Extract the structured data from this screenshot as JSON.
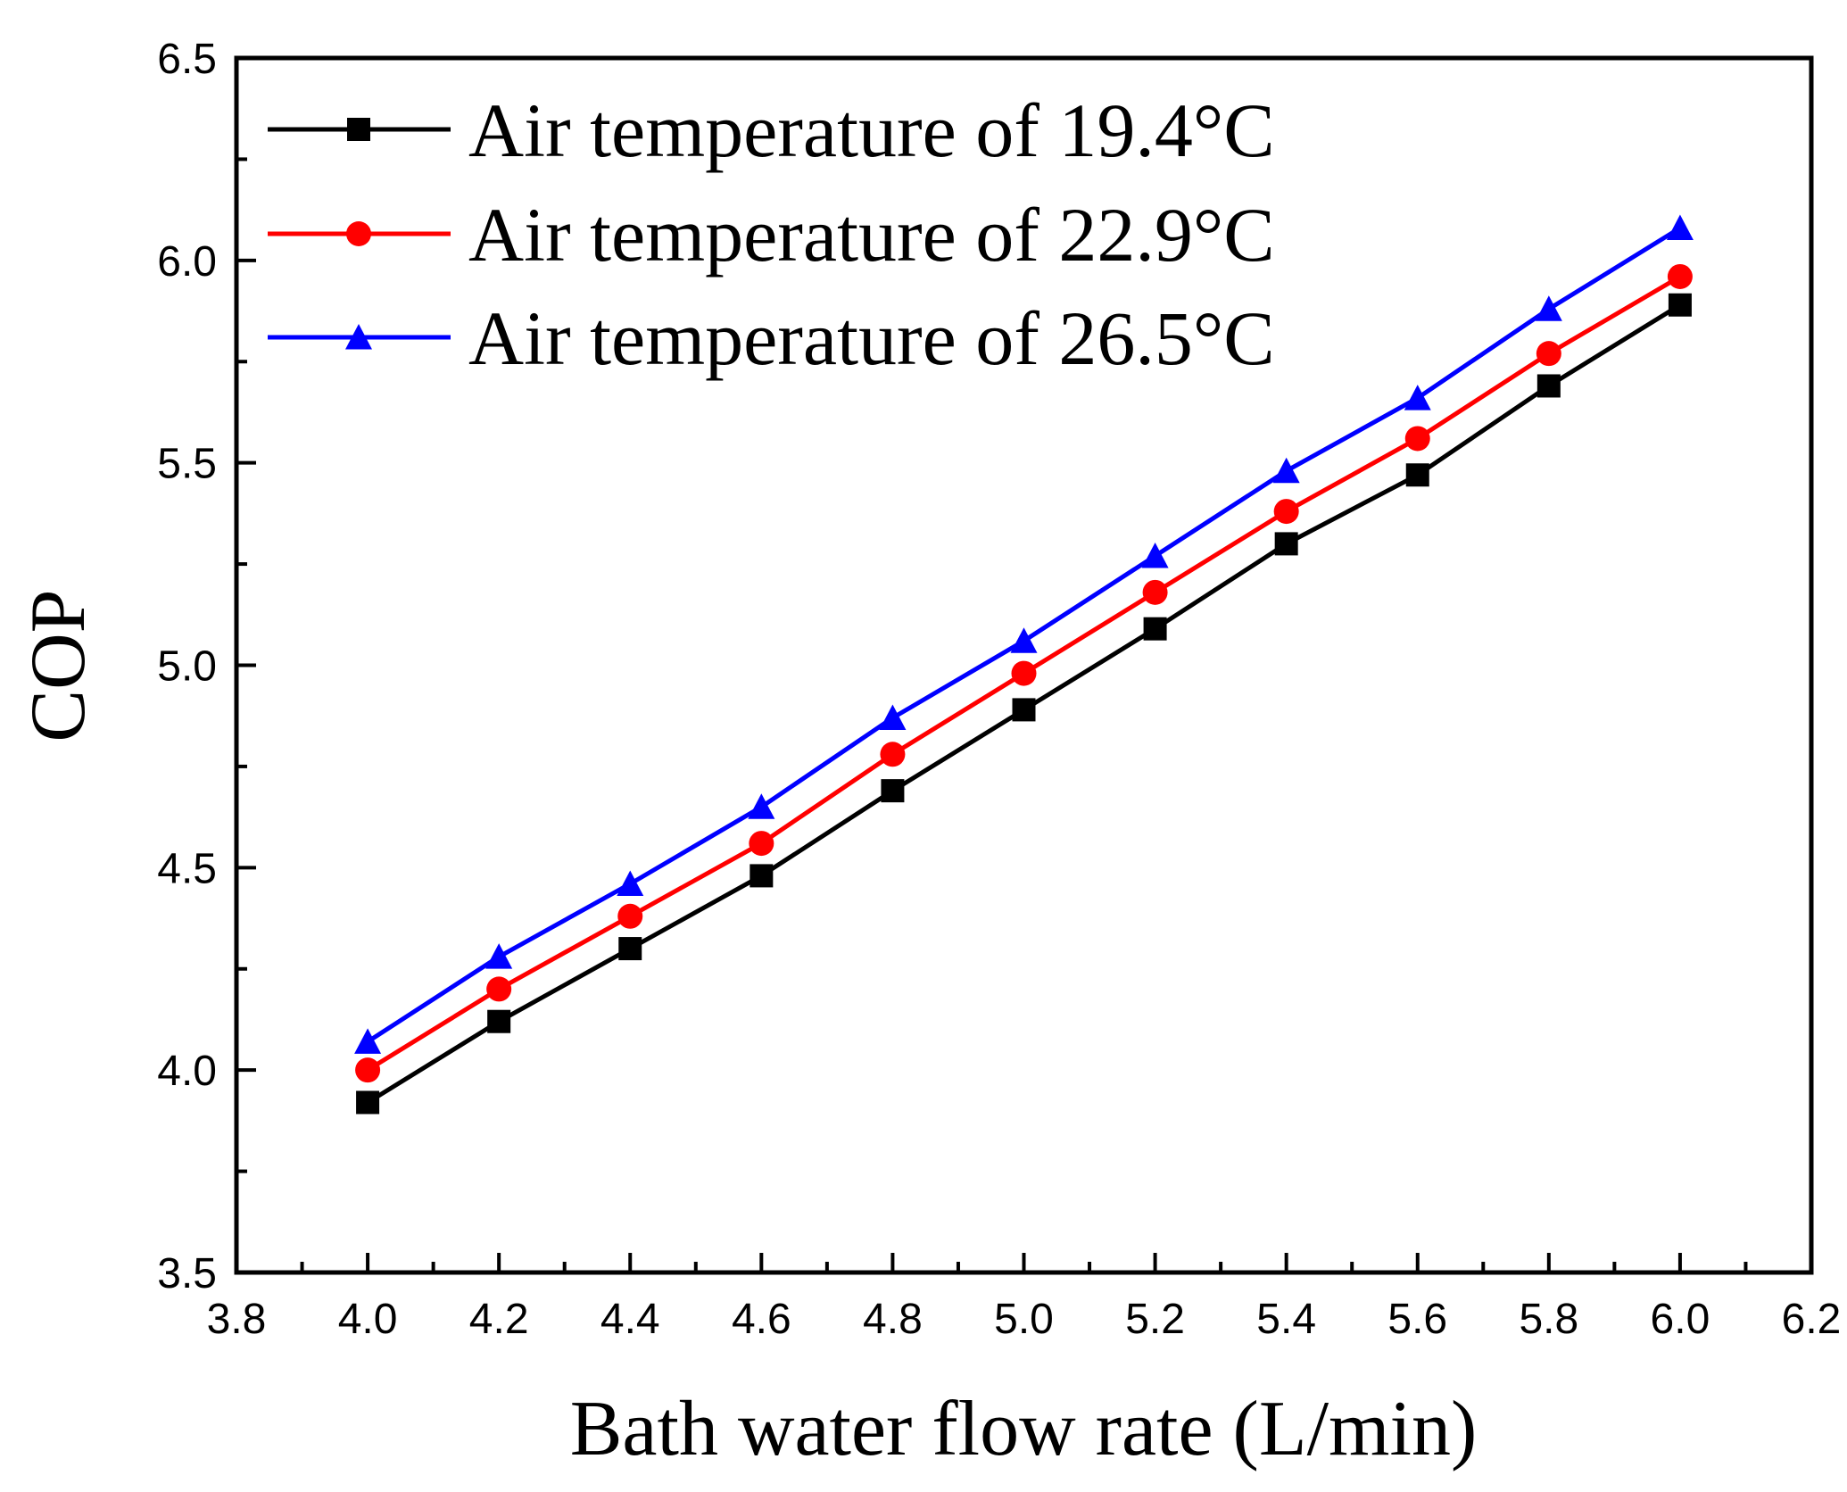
{
  "chart_data": {
    "type": "line",
    "title": "",
    "xlabel": "Bath water flow rate (L/min)",
    "ylabel": "COP",
    "xlim": [
      3.8,
      6.2
    ],
    "ylim": [
      3.5,
      6.5
    ],
    "x_ticks": [
      "3.8",
      "4.0",
      "4.2",
      "4.4",
      "4.6",
      "4.8",
      "5.0",
      "5.2",
      "5.4",
      "5.6",
      "5.8",
      "6.0",
      "6.2"
    ],
    "y_ticks": [
      "3.5",
      "4.0",
      "4.5",
      "5.0",
      "5.5",
      "6.0",
      "6.5"
    ],
    "grid": false,
    "legend_position": "top-left",
    "x": [
      4.0,
      4.2,
      4.4,
      4.6,
      4.8,
      5.0,
      5.2,
      5.4,
      5.6,
      5.8,
      6.0
    ],
    "series": [
      {
        "name": "Air temperature of 19.4°C",
        "color": "#000000",
        "marker": "square",
        "values": [
          3.92,
          4.12,
          4.3,
          4.48,
          4.69,
          4.89,
          5.09,
          5.3,
          5.47,
          5.69,
          5.89
        ]
      },
      {
        "name": "Air temperature of 22.9°C",
        "color": "#ff0000",
        "marker": "circle",
        "values": [
          4.0,
          4.2,
          4.38,
          4.56,
          4.78,
          4.98,
          5.18,
          5.38,
          5.56,
          5.77,
          5.96
        ]
      },
      {
        "name": "Air temperature of 26.5°C",
        "color": "#0000ff",
        "marker": "triangle",
        "values": [
          4.07,
          4.28,
          4.46,
          4.65,
          4.87,
          5.06,
          5.27,
          5.48,
          5.66,
          5.88,
          6.08
        ]
      }
    ]
  }
}
